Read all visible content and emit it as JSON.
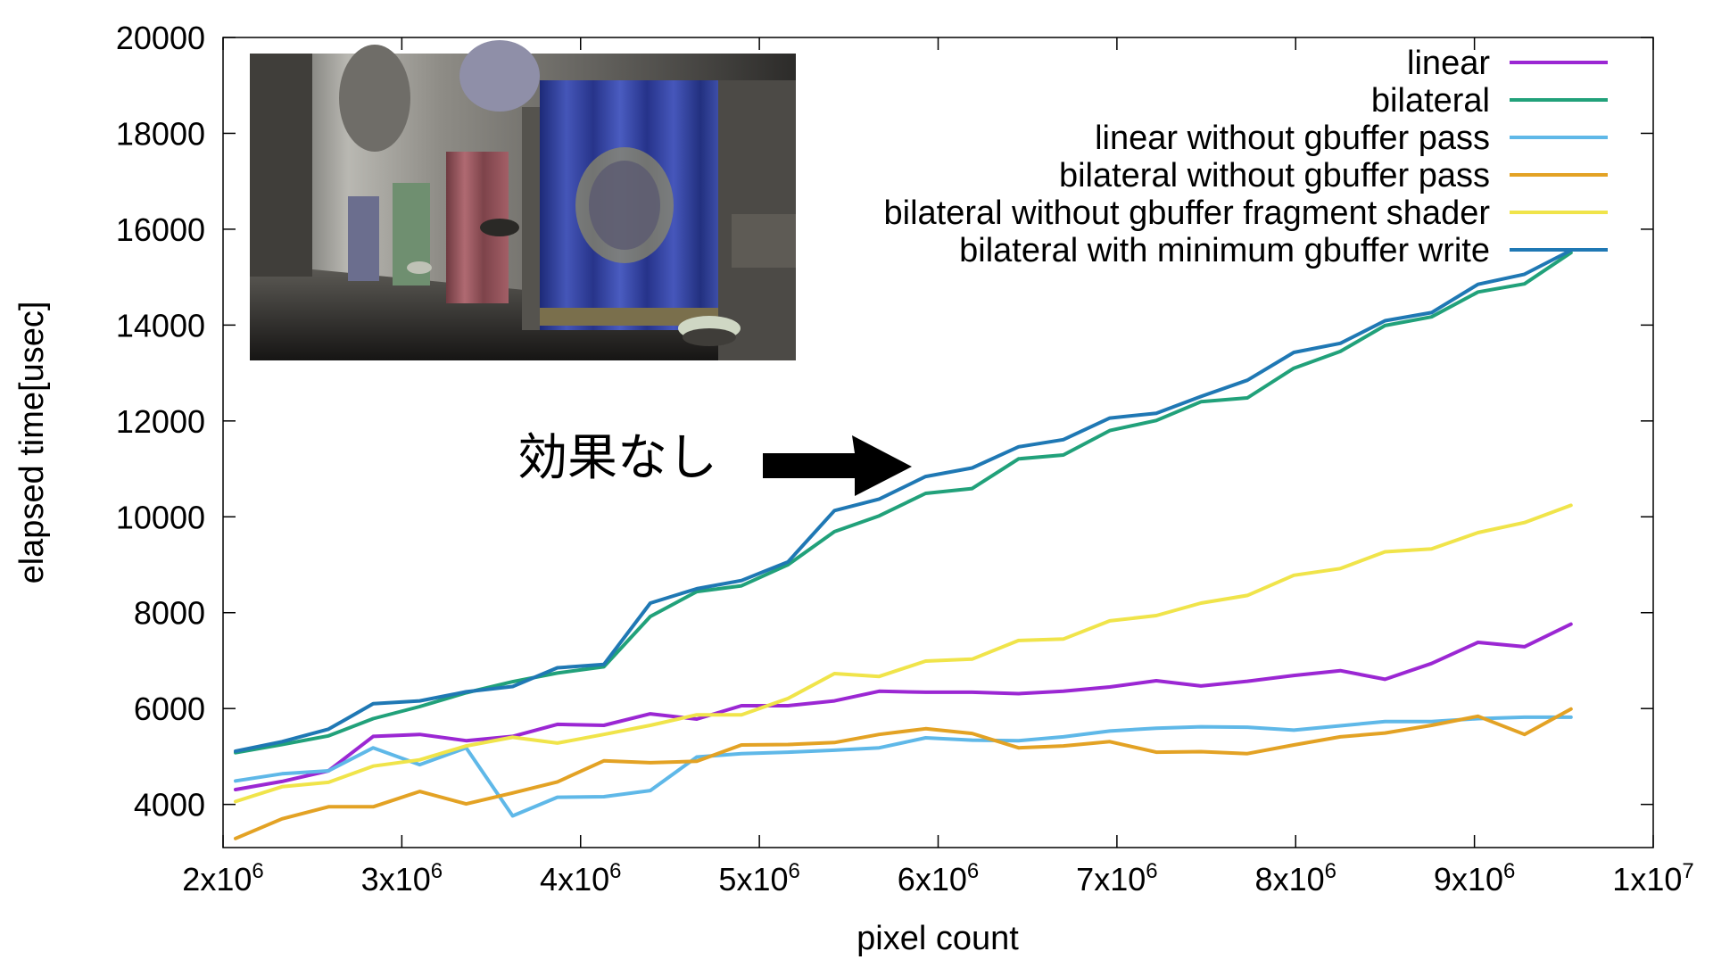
{
  "chart_data": {
    "type": "line",
    "title": "",
    "xlabel": "pixel count",
    "ylabel": "elapsed time[usec]",
    "xlim": [
      2000000,
      10000000
    ],
    "ylim": [
      3100,
      20000
    ],
    "grid": false,
    "legend_position": "top-right",
    "x_ticks": [
      {
        "value": 2000000,
        "mantissa": "2",
        "base": "x10",
        "exp": "6"
      },
      {
        "value": 3000000,
        "mantissa": "3",
        "base": "x10",
        "exp": "6"
      },
      {
        "value": 4000000,
        "mantissa": "4",
        "base": "x10",
        "exp": "6"
      },
      {
        "value": 5000000,
        "mantissa": "5",
        "base": "x10",
        "exp": "6"
      },
      {
        "value": 6000000,
        "mantissa": "6",
        "base": "x10",
        "exp": "6"
      },
      {
        "value": 7000000,
        "mantissa": "7",
        "base": "x10",
        "exp": "6"
      },
      {
        "value": 8000000,
        "mantissa": "8",
        "base": "x10",
        "exp": "6"
      },
      {
        "value": 9000000,
        "mantissa": "9",
        "base": "x10",
        "exp": "6"
      },
      {
        "value": 10000000,
        "mantissa": "1",
        "base": "x10",
        "exp": "7"
      }
    ],
    "y_ticks": [
      {
        "value": 4000,
        "label": "4000"
      },
      {
        "value": 6000,
        "label": "6000"
      },
      {
        "value": 8000,
        "label": "8000"
      },
      {
        "value": 10000,
        "label": "10000"
      },
      {
        "value": 12000,
        "label": "12000"
      },
      {
        "value": 14000,
        "label": "14000"
      },
      {
        "value": 16000,
        "label": "16000"
      },
      {
        "value": 18000,
        "label": "18000"
      },
      {
        "value": 20000,
        "label": "20000"
      }
    ],
    "x": [
      2070000,
      2330000,
      2590000,
      2840000,
      3100000,
      3360000,
      3620000,
      3870000,
      4130000,
      4390000,
      4650000,
      4900000,
      5160000,
      5420000,
      5670000,
      5930000,
      6190000,
      6450000,
      6700000,
      6960000,
      7220000,
      7470000,
      7730000,
      7990000,
      8250000,
      8500000,
      8760000,
      9020000,
      9280000,
      9540000
    ],
    "series": [
      {
        "name": "linear",
        "color": "#9b27d3",
        "values": [
          4310,
          4480,
          4700,
          5420,
          5460,
          5330,
          5420,
          5670,
          5650,
          5890,
          5780,
          6060,
          6060,
          6160,
          6360,
          6340,
          6340,
          6310,
          6360,
          6450,
          6580,
          6470,
          6570,
          6690,
          6790,
          6610,
          6940,
          7380,
          7290,
          7760
        ]
      },
      {
        "name": "bilateral",
        "color": "#21a17a",
        "values": [
          5080,
          5250,
          5430,
          5790,
          6040,
          6330,
          6560,
          6740,
          6870,
          7920,
          8440,
          8560,
          9000,
          9690,
          10020,
          10490,
          10590,
          11210,
          11290,
          11800,
          12010,
          12400,
          12480,
          13100,
          13450,
          13990,
          14170,
          14690,
          14860,
          15510
        ]
      },
      {
        "name": "linear without gbuffer pass",
        "color": "#5fb8e8",
        "values": [
          4490,
          4640,
          4700,
          5180,
          4830,
          5180,
          3760,
          4150,
          4160,
          4290,
          4990,
          5060,
          5090,
          5130,
          5180,
          5390,
          5340,
          5330,
          5410,
          5530,
          5590,
          5620,
          5610,
          5550,
          5640,
          5730,
          5730,
          5790,
          5820,
          5820
        ]
      },
      {
        "name": "bilateral without gbuffer pass",
        "color": "#e3a224",
        "values": [
          3290,
          3700,
          3950,
          3950,
          4270,
          4010,
          4240,
          4470,
          4910,
          4870,
          4900,
          5240,
          5250,
          5290,
          5460,
          5580,
          5480,
          5180,
          5220,
          5310,
          5090,
          5100,
          5060,
          5240,
          5410,
          5490,
          5650,
          5840,
          5460,
          5990
        ]
      },
      {
        "name": "bilateral without gbuffer fragment shader",
        "color": "#f0e44a",
        "values": [
          4060,
          4370,
          4460,
          4800,
          4930,
          5220,
          5400,
          5280,
          5460,
          5650,
          5870,
          5870,
          6210,
          6730,
          6670,
          6990,
          7030,
          7420,
          7450,
          7830,
          7940,
          8200,
          8360,
          8780,
          8920,
          9270,
          9330,
          9670,
          9880,
          10240
        ]
      },
      {
        "name": "bilateral with minimum gbuffer write",
        "color": "#1f78b4",
        "values": [
          5110,
          5310,
          5570,
          6100,
          6160,
          6350,
          6460,
          6850,
          6920,
          8200,
          8500,
          8670,
          9060,
          10130,
          10370,
          10840,
          11020,
          11460,
          11610,
          12060,
          12160,
          12510,
          12850,
          13430,
          13620,
          14090,
          14260,
          14850,
          15060,
          15560
        ]
      }
    ],
    "annotation": {
      "text": "効果なし",
      "arrow_target": {
        "x": 5900000,
        "y": 10700
      }
    }
  }
}
